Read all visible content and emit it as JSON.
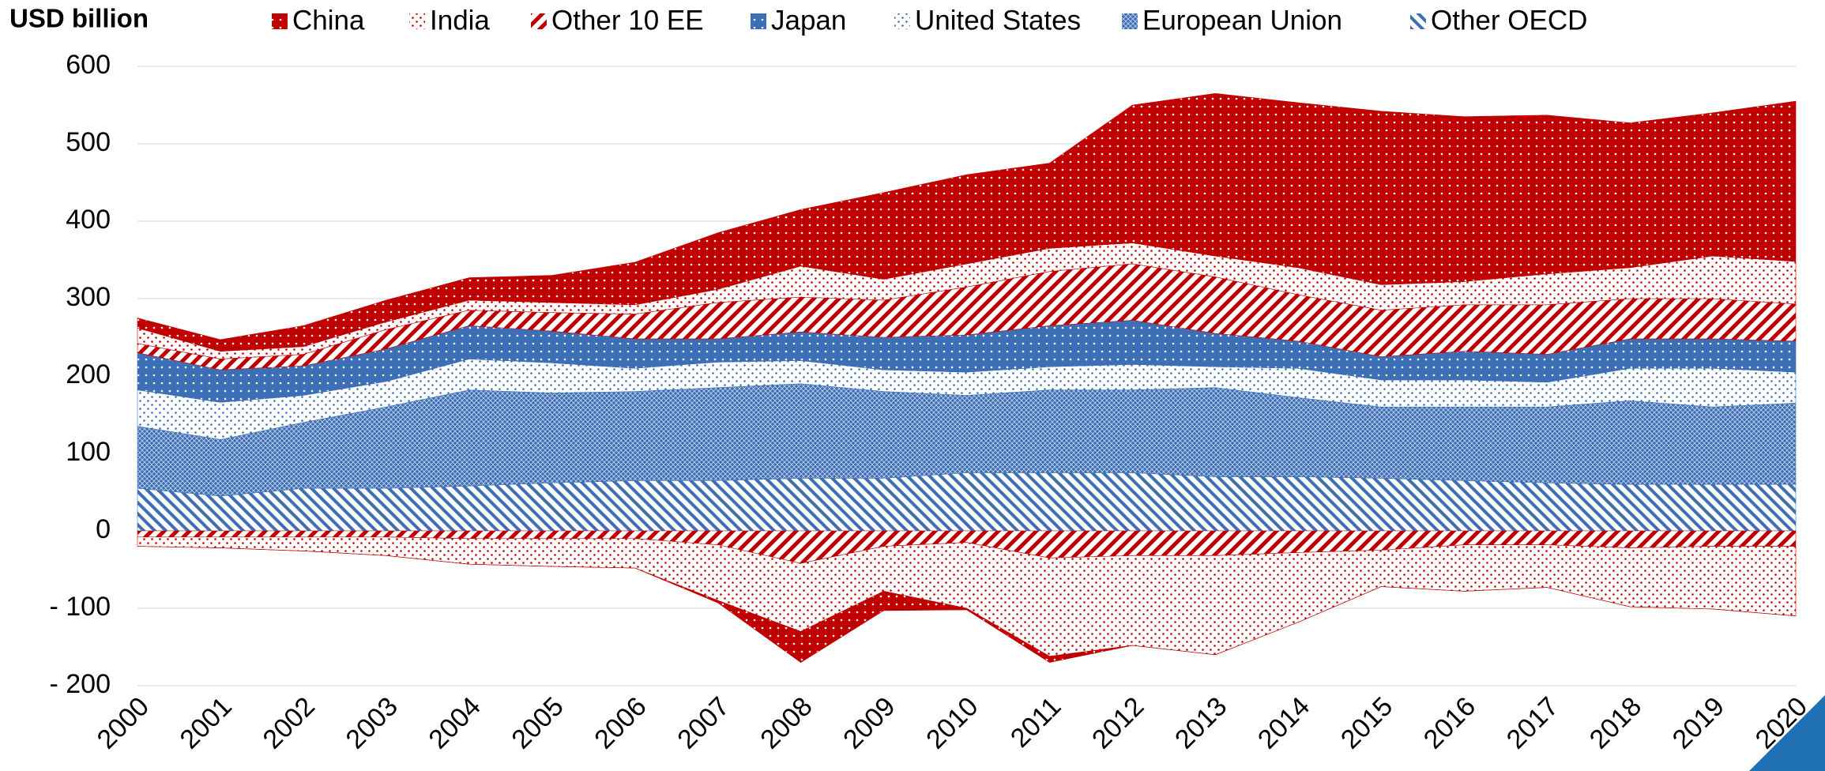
{
  "chart_data": {
    "type": "stacked_area",
    "ylabel": "USD billion",
    "x": [
      "2000",
      "2001",
      "2002",
      "2003",
      "2004",
      "2005",
      "2006",
      "2007",
      "2008",
      "2009",
      "2010",
      "2011",
      "2012",
      "2013",
      "2014",
      "2015",
      "2016",
      "2017",
      "2018",
      "2019",
      "2020"
    ],
    "ylim": [
      -200,
      600
    ],
    "yticks": [
      {
        "value": -200,
        "label": "- 200"
      },
      {
        "value": -100,
        "label": "- 100"
      },
      0,
      100,
      200,
      300,
      400,
      500,
      600
    ],
    "grid": true,
    "legend": "top",
    "series": [
      {
        "name": "Other OECD",
        "color": "#3d6fb6",
        "pattern": "back-hatch",
        "values": [
          55,
          45,
          55,
          55,
          58,
          62,
          65,
          65,
          68,
          68,
          75,
          75,
          75,
          70,
          70,
          68,
          65,
          62,
          60,
          60,
          60
        ]
      },
      {
        "name": "European Union",
        "color": "#3d6fb6",
        "pattern": "cross-hatch",
        "values": [
          80,
          73,
          85,
          105,
          124,
          116,
          115,
          120,
          122,
          112,
          100,
          107,
          107,
          115,
          102,
          92,
          95,
          98,
          108,
          100,
          105
        ]
      },
      {
        "name": "United States",
        "color": "#3d6fb6",
        "pattern": "light-dots",
        "values": [
          47,
          48,
          35,
          33,
          40,
          39,
          30,
          33,
          30,
          28,
          30,
          30,
          33,
          27,
          38,
          35,
          35,
          32,
          42,
          50,
          40
        ]
      },
      {
        "name": "Japan",
        "color": "#3d6fb6",
        "pattern": "solid-dots",
        "values": [
          48,
          42,
          38,
          42,
          43,
          41,
          38,
          30,
          37,
          42,
          48,
          53,
          57,
          43,
          35,
          30,
          37,
          36,
          38,
          38,
          40
        ]
      },
      {
        "name": "Other 10 EE",
        "color": "#c00000",
        "pattern": "forward-hatch",
        "values": [
          12,
          14,
          15,
          25,
          20,
          24,
          32,
          47,
          45,
          48,
          62,
          70,
          73,
          73,
          60,
          60,
          60,
          64,
          52,
          52,
          48
        ],
        "negative": [
          -8,
          -8,
          -8,
          -8,
          -10,
          -10,
          -10,
          -18,
          -42,
          -20,
          -15,
          -35,
          -32,
          -32,
          -28,
          -25,
          -18,
          -18,
          -22,
          -20,
          -20
        ]
      },
      {
        "name": "India",
        "color": "#c00000",
        "pattern": "light-dots",
        "values": [
          20,
          10,
          10,
          10,
          13,
          13,
          12,
          17,
          40,
          27,
          30,
          30,
          27,
          27,
          35,
          33,
          30,
          40,
          40,
          55,
          55
        ],
        "negative": [
          -12,
          -14,
          -18,
          -24,
          -33,
          -36,
          -38,
          -72,
          -88,
          -58,
          -85,
          -127,
          -116,
          -128,
          -90,
          -47,
          -60,
          -55,
          -76,
          -81,
          -90
        ]
      },
      {
        "name": "China",
        "color": "#c00000",
        "pattern": "solid-dots",
        "values": [
          13,
          15,
          27,
          28,
          29,
          35,
          55,
          73,
          73,
          112,
          115,
          110,
          178,
          210,
          213,
          224,
          213,
          205,
          187,
          185,
          207
        ],
        "negative": [
          0,
          0,
          0,
          0,
          0,
          0,
          0,
          -3,
          -40,
          -25,
          -2,
          -8,
          0,
          0,
          0,
          0,
          0,
          0,
          0,
          0,
          0
        ]
      }
    ]
  }
}
